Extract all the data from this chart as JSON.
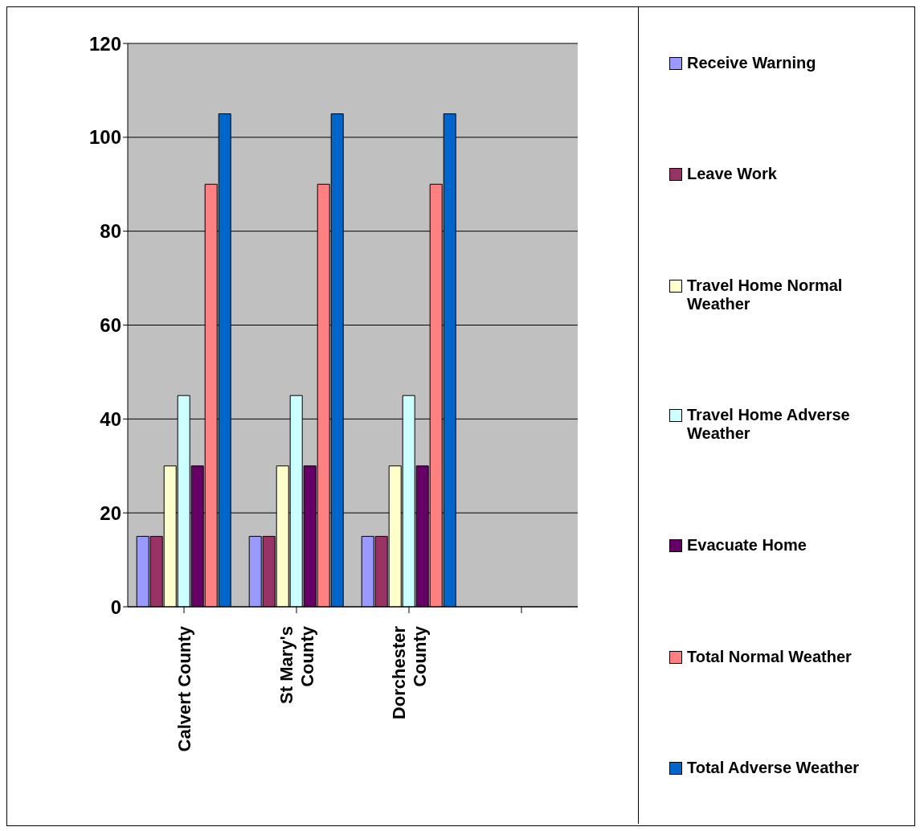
{
  "chart_data": {
    "type": "bar",
    "categories": [
      "Calvert County",
      "St Mary's County",
      "Dorchester County",
      null
    ],
    "series": [
      {
        "name": "Receive Warning",
        "color": "#9999ff",
        "values": [
          15,
          15,
          15,
          null
        ]
      },
      {
        "name": "Leave Work",
        "color": "#993366",
        "values": [
          15,
          15,
          15,
          null
        ]
      },
      {
        "name": "Travel Home Normal Weather",
        "color": "#ffffcc",
        "values": [
          30,
          30,
          30,
          null
        ]
      },
      {
        "name": "Travel Home Adverse Weather",
        "color": "#ccffff",
        "values": [
          45,
          45,
          45,
          null
        ]
      },
      {
        "name": "Evacuate Home",
        "color": "#660066",
        "values": [
          30,
          30,
          30,
          null
        ]
      },
      {
        "name": "Total Normal Weather",
        "color": "#ff8080",
        "values": [
          90,
          90,
          90,
          null
        ]
      },
      {
        "name": "Total Adverse Weather",
        "color": "#0066cc",
        "values": [
          105,
          105,
          105,
          null
        ]
      }
    ],
    "ylim": [
      0,
      120
    ],
    "yticks": [
      0,
      20,
      40,
      60,
      80,
      100,
      120
    ],
    "grid": "y",
    "legend": "right"
  }
}
